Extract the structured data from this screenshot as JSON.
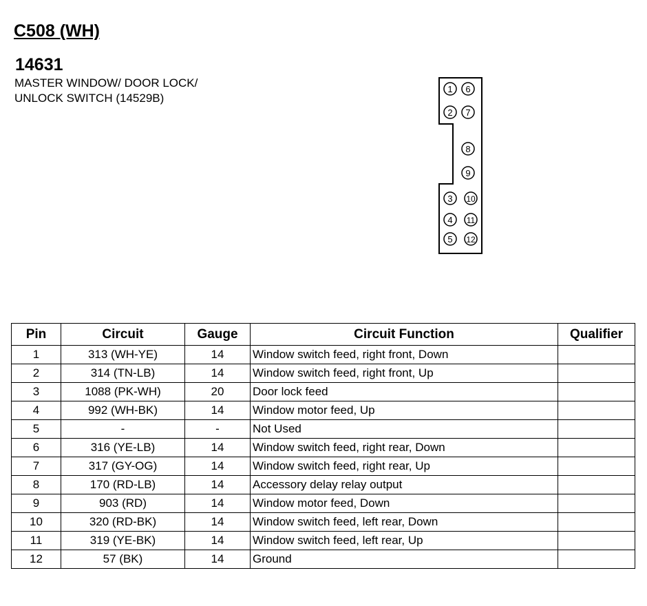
{
  "connector": "C508 (WH)",
  "part_number": "14631",
  "description": [
    "MASTER WINDOW/ DOOR LOCK/",
    "UNLOCK SWITCH (14529B)"
  ],
  "pin_labels": [
    "1",
    "2",
    "3",
    "4",
    "5",
    "6",
    "7",
    "8",
    "9",
    "10",
    "11",
    "12"
  ],
  "table": {
    "headers": [
      "Pin",
      "Circuit",
      "Gauge",
      "Circuit Function",
      "Qualifier"
    ],
    "rows": [
      [
        "1",
        "313 (WH-YE)",
        "14",
        "Window switch feed, right front, Down",
        ""
      ],
      [
        "2",
        "314 (TN-LB)",
        "14",
        "Window switch feed, right front, Up",
        ""
      ],
      [
        "3",
        "1088 (PK-WH)",
        "20",
        "Door lock feed",
        ""
      ],
      [
        "4",
        "992 (WH-BK)",
        "14",
        "Window motor feed, Up",
        ""
      ],
      [
        "5",
        "-",
        "-",
        "Not Used",
        ""
      ],
      [
        "6",
        "316 (YE-LB)",
        "14",
        "Window switch feed, right rear, Down",
        ""
      ],
      [
        "7",
        "317 (GY-OG)",
        "14",
        "Window switch feed, right rear, Up",
        ""
      ],
      [
        "8",
        "170 (RD-LB)",
        "14",
        "Accessory delay relay output",
        ""
      ],
      [
        "9",
        "903 (RD)",
        "14",
        "Window motor feed, Down",
        ""
      ],
      [
        "10",
        "320 (RD-BK)",
        "14",
        "Window switch feed, left rear, Down",
        ""
      ],
      [
        "11",
        "319 (YE-BK)",
        "14",
        "Window switch feed, left rear, Up",
        ""
      ],
      [
        "12",
        "57 (BK)",
        "14",
        "Ground",
        ""
      ]
    ]
  }
}
